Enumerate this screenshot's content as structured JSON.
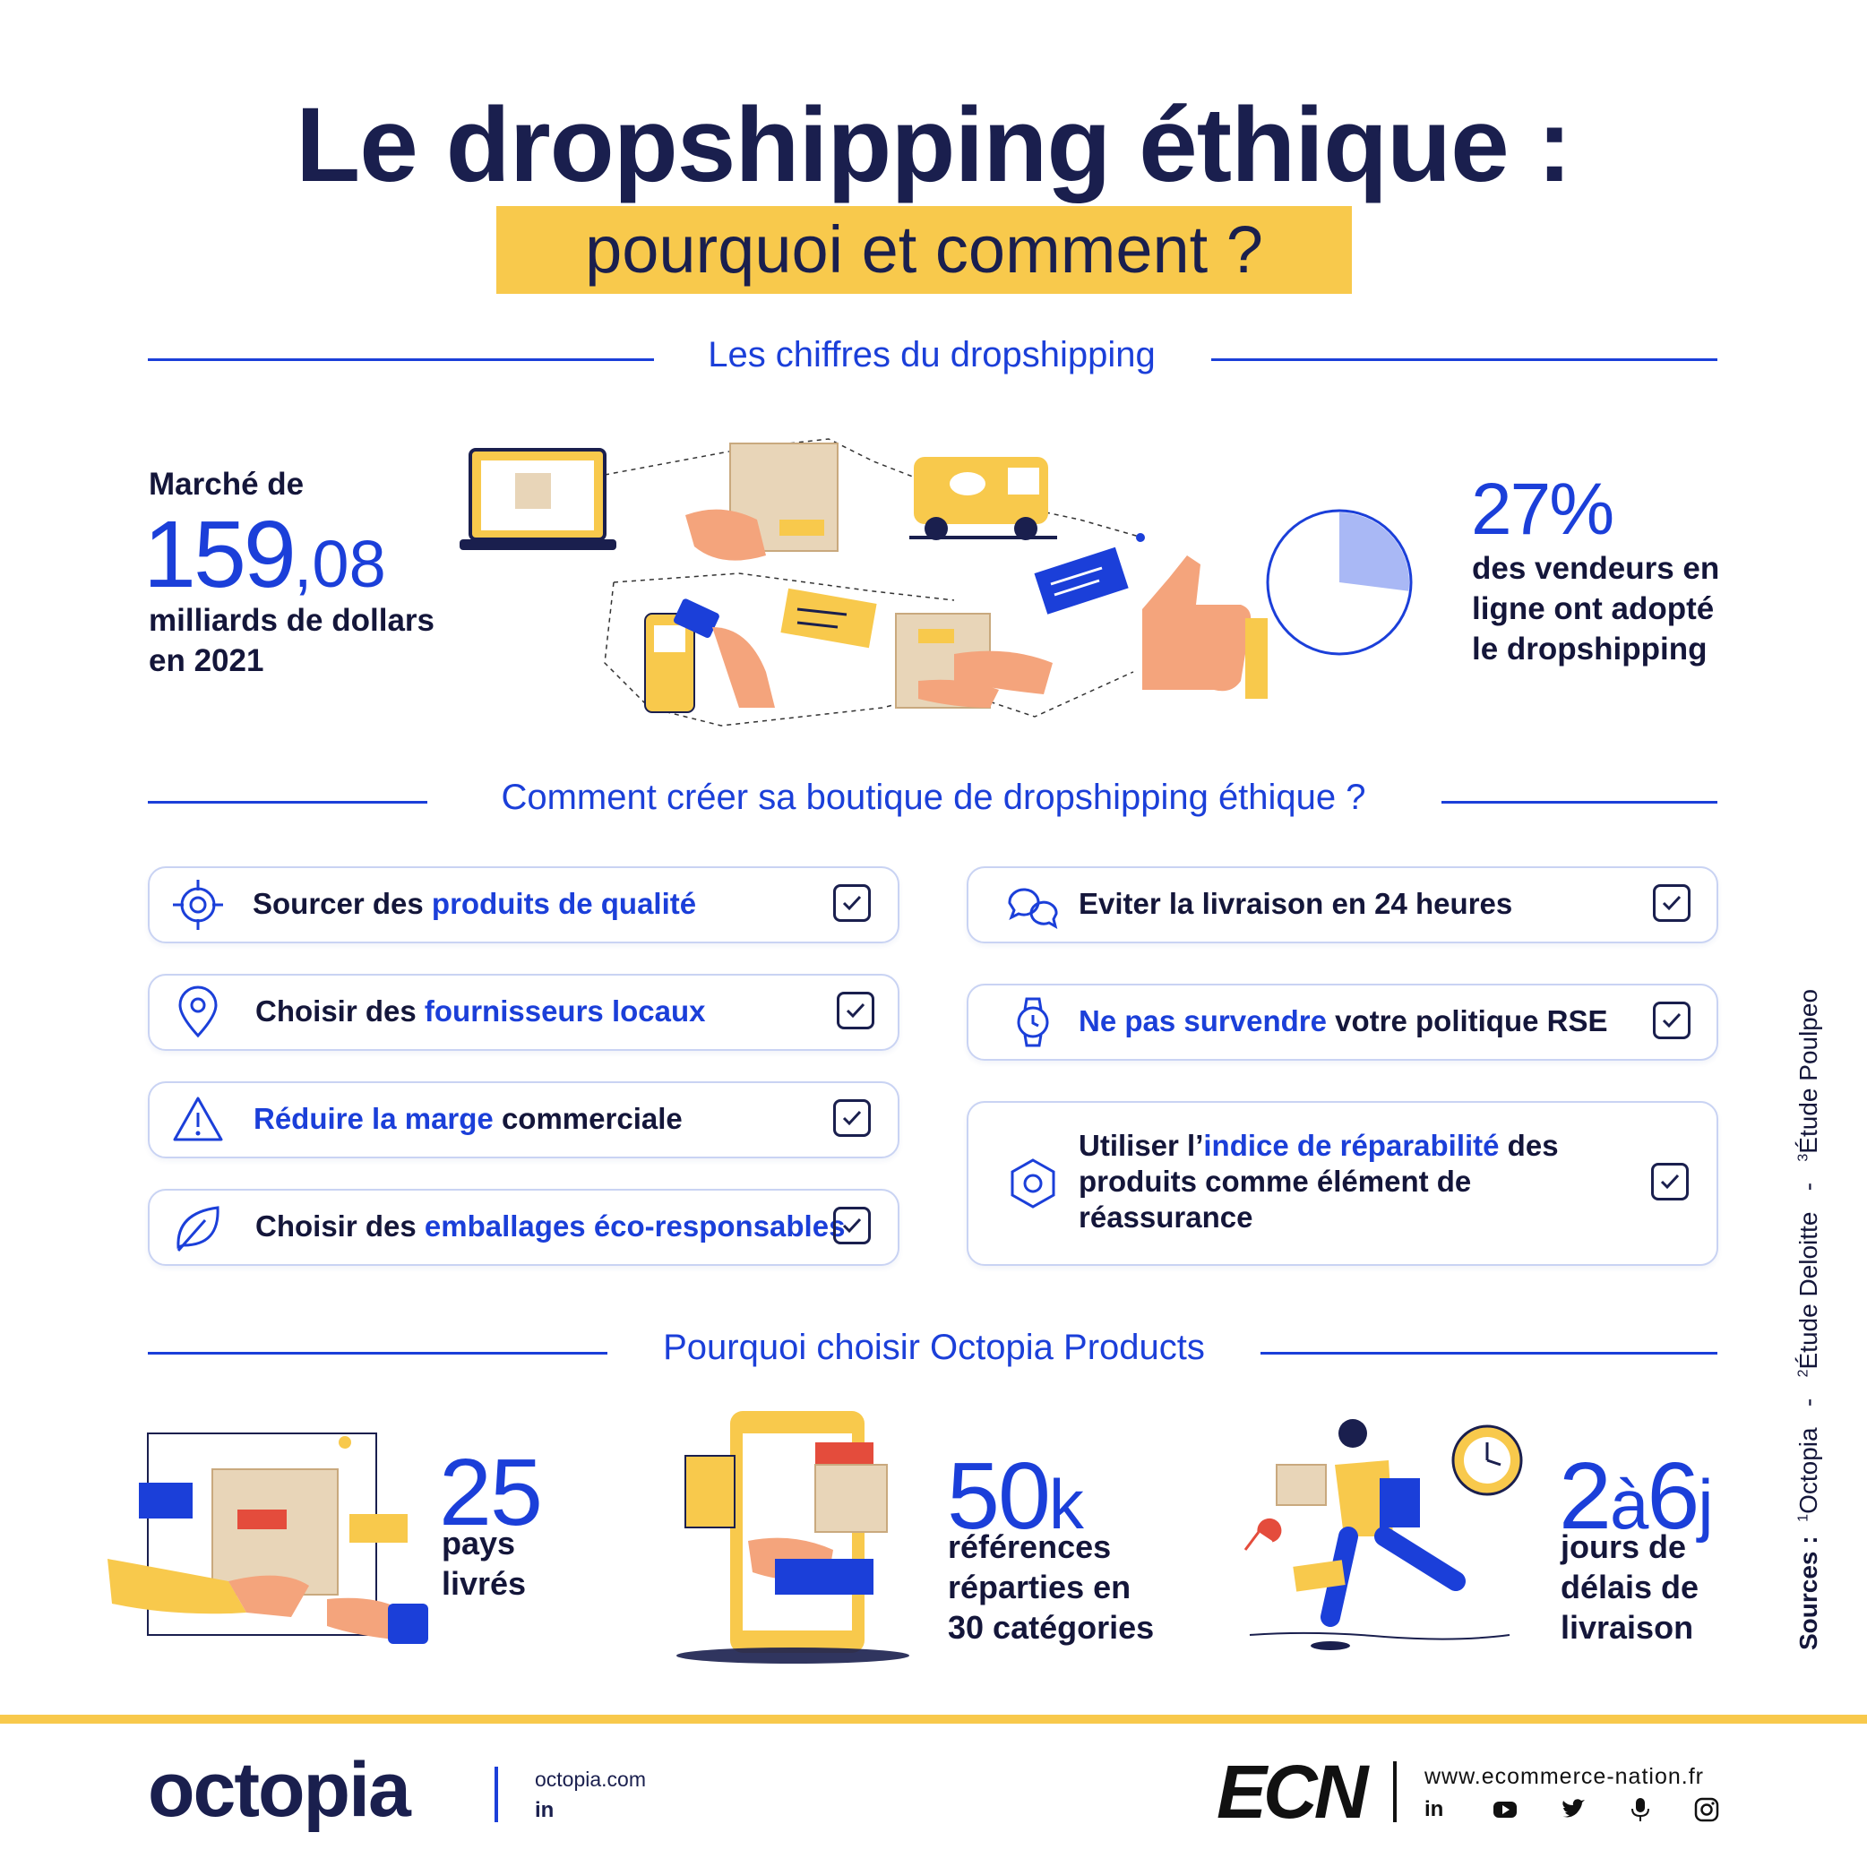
{
  "header": {
    "title": "Le dropshipping éthique :",
    "subtitle": "pourquoi et comment ?"
  },
  "section1": {
    "title": "Les chiffres du dropshipping",
    "market": {
      "prefix": "Marché de",
      "value_int": "159",
      "value_dec": ",08",
      "line1": "milliards de dollars",
      "line2": "en 2021"
    },
    "adoption": {
      "value": "27%",
      "line1": "des vendeurs en",
      "line2": "ligne ont adopté",
      "line3": "le dropshipping",
      "pie_fraction": 0.27
    }
  },
  "section2": {
    "title": "Comment créer sa boutique de dropshipping éthique ?",
    "left": [
      {
        "icon": "target-icon",
        "pre": "Sourcer des ",
        "hl": "produits de qualité",
        "post": ""
      },
      {
        "icon": "location-pin-icon",
        "pre": "Choisir des ",
        "hl": "fournisseurs locaux",
        "post": ""
      },
      {
        "icon": "warning-icon",
        "pre": "",
        "hl": "Réduire la marge",
        "post": " commerciale"
      },
      {
        "icon": "leaf-icon",
        "pre": "Choisir des ",
        "hl": "emballages éco-responsables",
        "post": ""
      }
    ],
    "right": [
      {
        "icon": "chat-bubbles-icon",
        "pre": "Eviter la livraison en 24 heures",
        "hl": "",
        "post": ""
      },
      {
        "icon": "watch-icon",
        "pre": "",
        "hl": "Ne pas survendre",
        "post": " votre politique RSE"
      },
      {
        "icon": "hexagon-nut-icon",
        "l1_pre": "Utiliser l’",
        "l1_hl": "indice de réparabilité",
        "l1_post": " des",
        "l2": "produits comme élément de",
        "l3": "réassurance"
      }
    ]
  },
  "section3": {
    "title": "Pourquoi choisir Octopia Products",
    "stats": [
      {
        "value": "25",
        "lines": [
          "pays",
          "livrés"
        ]
      },
      {
        "value": "50",
        "suffix": "k",
        "lines": [
          "références",
          "réparties en",
          "30 catégories"
        ]
      },
      {
        "value_a": "2",
        "mid": "à",
        "value_b": "6",
        "suffix": "j",
        "lines": [
          "jours de",
          "délais de",
          "livraison"
        ]
      }
    ]
  },
  "sources": {
    "label": "Sources :",
    "s1_sup": "1",
    "s1": "Octopia",
    "sep": "-",
    "s2_sup": "2",
    "s2": "Étude Deloitte",
    "s3_sup": "3",
    "s3": "Étude Poulpeo"
  },
  "footer": {
    "octopia_logo": "octopia",
    "octopia_url": "octopia.com",
    "ecn_logo": "ECN",
    "ecn_url": "www.ecommerce-nation.fr"
  },
  "colors": {
    "blue": "#1b3fd9",
    "navy": "#1a1f4e",
    "yellow": "#f8c94c"
  }
}
